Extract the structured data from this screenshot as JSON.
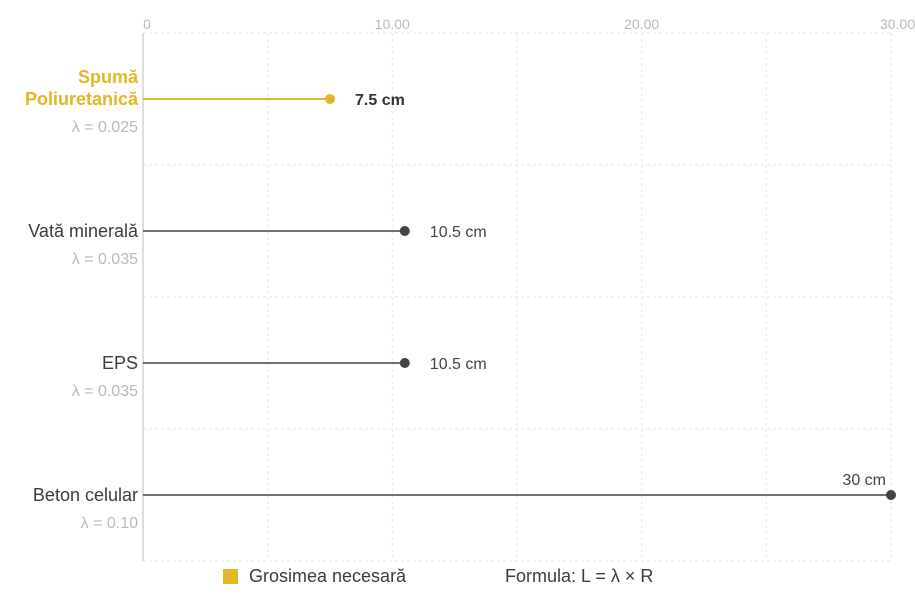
{
  "chart_data": {
    "type": "lollipop",
    "x_ticks": [
      {
        "value": 0,
        "label": "0"
      },
      {
        "value": 10,
        "label": "10.00"
      },
      {
        "value": 20,
        "label": "20.00"
      },
      {
        "value": 30,
        "label": "30.00"
      }
    ],
    "xlim": [
      0,
      30
    ],
    "grid": true,
    "categories": [
      {
        "name_lines": [
          "Spumă",
          "Poliuretanică"
        ],
        "lambda_label": "λ  = 0.025",
        "value": 7.5,
        "value_label": "7.5 cm",
        "highlight": true
      },
      {
        "name_lines": [
          "Vată minerală"
        ],
        "lambda_label": "λ  = 0.035",
        "value": 10.5,
        "value_label": "10.5 cm",
        "highlight": false
      },
      {
        "name_lines": [
          "EPS"
        ],
        "lambda_label": "λ  = 0.035",
        "value": 10.5,
        "value_label": "10.5 cm",
        "highlight": false
      },
      {
        "name_lines": [
          "Beton celular"
        ],
        "lambda_label": "λ  = 0.10",
        "value": 30,
        "value_label": "30 cm",
        "highlight": false
      }
    ],
    "legend": {
      "series_label": "Grosimea necesară",
      "formula_label": "Formula: L = λ × R"
    },
    "colors": {
      "highlight": "#e0b726",
      "default": "#444444",
      "grid": "#e6e6e6",
      "axis": "#bbbbbb"
    }
  }
}
